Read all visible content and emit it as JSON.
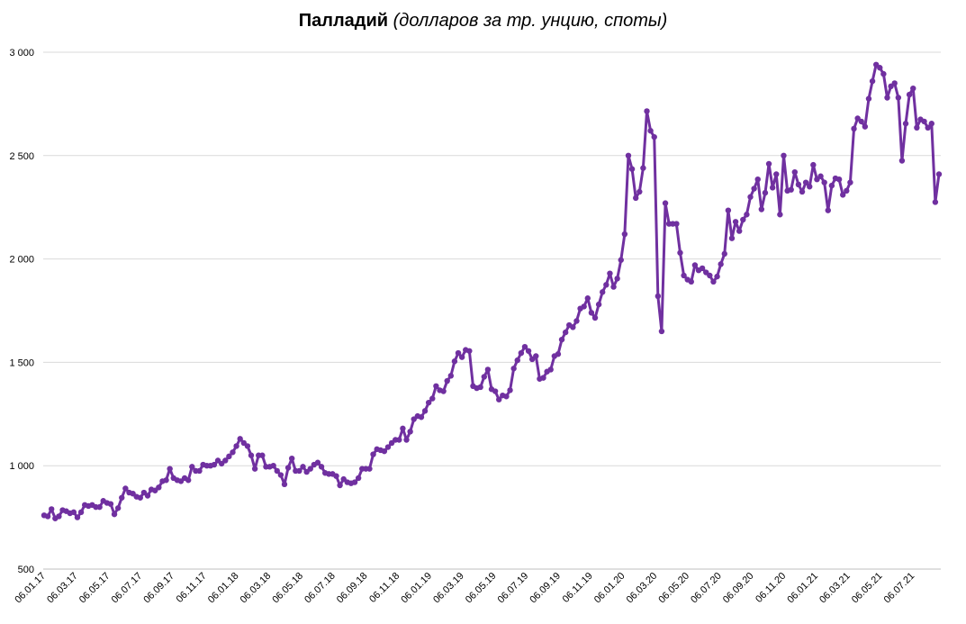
{
  "chart_data": {
    "type": "line",
    "title": "Палладий",
    "subtitle": "(долларов за тр. унцию, споты)",
    "xlabel": "",
    "ylabel": "",
    "ylim": [
      500,
      3000
    ],
    "yticks": [
      500,
      1000,
      1500,
      2000,
      2500,
      3000
    ],
    "ytick_labels": [
      "500",
      "1 000",
      "1 500",
      "2 000",
      "2 500",
      "3 000"
    ],
    "grid": true,
    "legend": "none",
    "x_tick_labels": [
      "06.01.17",
      "06.03.17",
      "06.05.17",
      "06.07.17",
      "06.09.17",
      "06.11.17",
      "06.01.18",
      "06.03.18",
      "06.05.18",
      "06.07.18",
      "06.09.18",
      "06.11.18",
      "06.01.19",
      "06.03.19",
      "06.05.19",
      "06.07.19",
      "06.09.19",
      "06.11.19",
      "06.01.20",
      "06.03.20",
      "06.05.20",
      "06.07.20",
      "06.09.20",
      "06.11.20",
      "06.01.21",
      "06.03.21",
      "06.05.21",
      "06.07.21"
    ],
    "series": [
      {
        "color": "#7030a0",
        "values": [
          760,
          755,
          790,
          745,
          755,
          785,
          780,
          770,
          775,
          750,
          775,
          810,
          805,
          810,
          800,
          800,
          830,
          820,
          815,
          765,
          795,
          845,
          890,
          870,
          865,
          850,
          845,
          870,
          855,
          885,
          880,
          895,
          925,
          930,
          985,
          940,
          930,
          925,
          940,
          930,
          995,
          975,
          975,
          1005,
          1000,
          1000,
          1005,
          1025,
          1010,
          1025,
          1045,
          1065,
          1095,
          1130,
          1110,
          1095,
          1050,
          985,
          1050,
          1050,
          995,
          995,
          1000,
          975,
          955,
          910,
          990,
          1035,
          975,
          975,
          995,
          970,
          985,
          1005,
          1015,
          995,
          965,
          960,
          960,
          950,
          905,
          935,
          920,
          915,
          920,
          940,
          985,
          985,
          985,
          1055,
          1080,
          1075,
          1070,
          1090,
          1110,
          1125,
          1125,
          1180,
          1125,
          1165,
          1225,
          1240,
          1235,
          1265,
          1305,
          1325,
          1385,
          1365,
          1360,
          1410,
          1435,
          1505,
          1545,
          1525,
          1560,
          1555,
          1385,
          1375,
          1380,
          1430,
          1465,
          1370,
          1360,
          1320,
          1340,
          1335,
          1365,
          1470,
          1510,
          1545,
          1575,
          1555,
          1515,
          1530,
          1420,
          1425,
          1455,
          1465,
          1530,
          1540,
          1610,
          1645,
          1680,
          1670,
          1700,
          1760,
          1770,
          1810,
          1740,
          1715,
          1780,
          1840,
          1875,
          1930,
          1865,
          1905,
          1995,
          2120,
          2500,
          2435,
          2295,
          2325,
          2440,
          2715,
          2620,
          2590,
          1820,
          1650,
          2270,
          2170,
          2170,
          2170,
          2030,
          1920,
          1900,
          1890,
          1970,
          1945,
          1955,
          1935,
          1920,
          1890,
          1915,
          1975,
          2025,
          2235,
          2100,
          2180,
          2135,
          2190,
          2215,
          2300,
          2340,
          2385,
          2240,
          2320,
          2460,
          2345,
          2410,
          2215,
          2500,
          2330,
          2335,
          2420,
          2360,
          2325,
          2370,
          2350,
          2455,
          2385,
          2400,
          2370,
          2235,
          2355,
          2390,
          2385,
          2310,
          2330,
          2370,
          2630,
          2680,
          2665,
          2640,
          2775,
          2860,
          2940,
          2925,
          2895,
          2780,
          2835,
          2850,
          2780,
          2475,
          2655,
          2795,
          2825,
          2635,
          2675,
          2665,
          2635,
          2655,
          2275,
          2410
        ]
      }
    ]
  }
}
